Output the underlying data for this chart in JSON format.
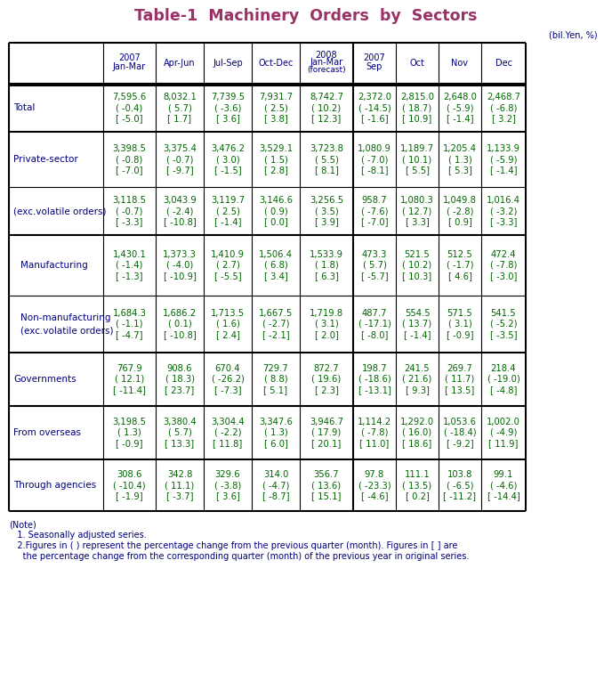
{
  "title": "Table-1  Machinery  Orders  by  Sectors",
  "unit_label": "(bil.Yen, %)",
  "title_color": "#993366",
  "header_color": "#000080",
  "data_color": "#006600",
  "row_label_color": "#000080",
  "note_color": "#000080",
  "col_headers": [
    "2007\nJan-Mar",
    "Apr-Jun",
    "Jul-Sep",
    "Oct-Dec",
    "2008\nJan-Mar\n(forecast)",
    "2007\nSep",
    "Oct",
    "Nov",
    "Dec"
  ],
  "rows": [
    {
      "label": "Total",
      "indent": false,
      "data": [
        [
          "7,595.6",
          "( -0.4)",
          "[ -5.0]"
        ],
        [
          "8,032.1",
          "( 5.7)",
          "[ 1.7]"
        ],
        [
          "7,739.5",
          "( -3.6)",
          "[ 3.6]"
        ],
        [
          "7,931.7",
          "( 2.5)",
          "[ 3.8]"
        ],
        [
          "8,742.7",
          "( 10.2)",
          "[ 12.3]"
        ],
        [
          "2,372.0",
          "( -14.5)",
          "[ -1.6]"
        ],
        [
          "2,815.0",
          "( 18.7)",
          "[ 10.9]"
        ],
        [
          "2,648.0",
          "( -5.9)",
          "[ -1.4]"
        ],
        [
          "2,468.7",
          "( -6.8)",
          "[ 3.2]"
        ]
      ],
      "thick_top": true
    },
    {
      "label": "Private-sector",
      "indent": false,
      "data": [
        [
          "3,398.5",
          "( -0.8)",
          "[ -7.0]"
        ],
        [
          "3,375.4",
          "( -0.7)",
          "[ -9.7]"
        ],
        [
          "3,476.2",
          "( 3.0)",
          "[ -1.5]"
        ],
        [
          "3,529.1",
          "( 1.5)",
          "[ 2.8]"
        ],
        [
          "3,723.8",
          "( 5.5)",
          "[ 8.1]"
        ],
        [
          "1,080.9",
          "( -7.0)",
          "[ -8.1]"
        ],
        [
          "1,189.7",
          "( 10.1)",
          "[ 5.5]"
        ],
        [
          "1,205.4",
          "( 1.3)",
          "[ 5.3]"
        ],
        [
          "1,133.9",
          "( -5.9)",
          "[ -1.4]"
        ]
      ],
      "thick_top": true
    },
    {
      "label": "(exc.volatile orders)",
      "indent": false,
      "data": [
        [
          "3,118.5",
          "( -0.7)",
          "[ -3.3]"
        ],
        [
          "3,043.9",
          "( -2.4)",
          "[ -10.8]"
        ],
        [
          "3,119.7",
          "( 2.5)",
          "[ -1.4]"
        ],
        [
          "3,146.6",
          "( 0.9)",
          "[ 0.0]"
        ],
        [
          "3,256.5",
          "( 3.5)",
          "[ 3.9]"
        ],
        [
          "958.7",
          "( -7.6)",
          "[ -7.0]"
        ],
        [
          "1,080.3",
          "( 12.7)",
          "[ 3.3]"
        ],
        [
          "1,049.8",
          "( -2.8)",
          "[ 0.9]"
        ],
        [
          "1,016.4",
          "( -3.2)",
          "[ -3.3]"
        ]
      ],
      "thick_top": false
    },
    {
      "label": "Manufacturing",
      "indent": true,
      "data": [
        [
          "1,430.1",
          "( -1.4)",
          "[ -1.3]"
        ],
        [
          "1,373.3",
          "( -4.0)",
          "[ -10.9]"
        ],
        [
          "1,410.9",
          "( 2.7)",
          "[ -5.5]"
        ],
        [
          "1,506.4",
          "( 6.8)",
          "[ 3.4]"
        ],
        [
          "1,533.9",
          "( 1.8)",
          "[ 6.3]"
        ],
        [
          "473.3",
          "( 5.7)",
          "[ -5.7]"
        ],
        [
          "521.5",
          "( 10.2)",
          "[ 10.3]"
        ],
        [
          "512.5",
          "( -1.7)",
          "[ 4.6]"
        ],
        [
          "472.4",
          "( -7.8)",
          "[ -3.0]"
        ]
      ],
      "thick_top": true
    },
    {
      "label": "Non-manufacturing\n(exc.volatile orders)",
      "indent": true,
      "data": [
        [
          "1,684.3",
          "( -1.1)",
          "[ -4.7]"
        ],
        [
          "1,686.2",
          "( 0.1)",
          "[ -10.8]"
        ],
        [
          "1,713.5",
          "( 1.6)",
          "[ 2.4]"
        ],
        [
          "1,667.5",
          "( -2.7)",
          "[ -2.1]"
        ],
        [
          "1,719.8",
          "( 3.1)",
          "[ 2.0]"
        ],
        [
          "487.7",
          "( -17.1)",
          "[ -8.0]"
        ],
        [
          "554.5",
          "( 13.7)",
          "[ -1.4]"
        ],
        [
          "571.5",
          "( 3.1)",
          "[ -0.9]"
        ],
        [
          "541.5",
          "( -5.2)",
          "[ -3.5]"
        ]
      ],
      "thick_top": false
    },
    {
      "label": "Governments",
      "indent": false,
      "data": [
        [
          "767.9",
          "( 12.1)",
          "[ -11.4]"
        ],
        [
          "908.6",
          "( 18.3)",
          "[ 23.7]"
        ],
        [
          "670.4",
          "( -26.2)",
          "[ -7.3]"
        ],
        [
          "729.7",
          "( 8.8)",
          "[ 5.1]"
        ],
        [
          "872.7",
          "( 19.6)",
          "[ 2.3]"
        ],
        [
          "198.7",
          "( -18.6)",
          "[ -13.1]"
        ],
        [
          "241.5",
          "( 21.6)",
          "[ 9.3]"
        ],
        [
          "269.7",
          "( 11.7)",
          "[ 13.5]"
        ],
        [
          "218.4",
          "( -19.0)",
          "[ -4.8]"
        ]
      ],
      "thick_top": true
    },
    {
      "label": "From overseas",
      "indent": false,
      "data": [
        [
          "3,198.5",
          "( 1.3)",
          "[ -0.9]"
        ],
        [
          "3,380.4",
          "( 5.7)",
          "[ 13.3]"
        ],
        [
          "3,304.4",
          "( -2.2)",
          "[ 11.8]"
        ],
        [
          "3,347.6",
          "( 1.3)",
          "[ 6.0]"
        ],
        [
          "3,946.7",
          "( 17.9)",
          "[ 20.1]"
        ],
        [
          "1,114.2",
          "( -7.8)",
          "[ 11.0]"
        ],
        [
          "1,292.0",
          "( 16.0)",
          "[ 18.6]"
        ],
        [
          "1,053.6",
          "( -18.4)",
          "[ -9.2]"
        ],
        [
          "1,002.0",
          "( -4.9)",
          "[ 11.9]"
        ]
      ],
      "thick_top": true
    },
    {
      "label": "Through agencies",
      "indent": false,
      "data": [
        [
          "308.6",
          "( -10.4)",
          "[ -1.9]"
        ],
        [
          "342.8",
          "( 11.1)",
          "[ -3.7]"
        ],
        [
          "329.6",
          "( -3.8)",
          "[ 3.6]"
        ],
        [
          "314.0",
          "( -4.7)",
          "[ -8.7]"
        ],
        [
          "356.7",
          "( 13.6)",
          "[ 15.1]"
        ],
        [
          "97.8",
          "( -23.3)",
          "[ -4.6]"
        ],
        [
          "111.1",
          "( 13.5)",
          "[ 0.2]"
        ],
        [
          "103.8",
          "( -6.5)",
          "[ -11.2]"
        ],
        [
          "99.1",
          "( -4.6)",
          "[ -14.4]"
        ]
      ],
      "thick_top": true
    }
  ],
  "notes": [
    "(Note)",
    "   1. Seasonally adjusted series.",
    "   2.Figures in ( ) represent the percentage change from the previous quarter (month). Figures in [ ] are",
    "     the percentage change from the corresponding quarter (month) of the previous year in original series."
  ]
}
